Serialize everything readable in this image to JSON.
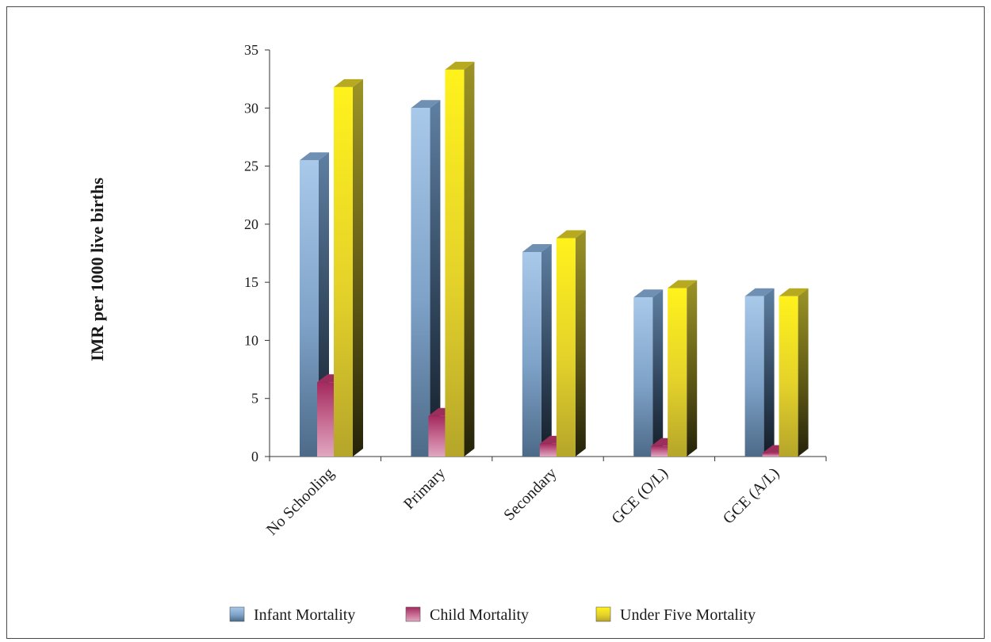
{
  "chart_data": {
    "type": "bar",
    "categories": [
      "No Schooling",
      "Primary",
      "Secondary",
      "GCE (O/L)",
      "GCE (A/L)"
    ],
    "series": [
      {
        "name": "Infant Mortality",
        "values": [
          25.5,
          30.0,
          17.6,
          13.7,
          13.8
        ]
      },
      {
        "name": "Child Mortality",
        "values": [
          6.4,
          3.5,
          1.1,
          0.9,
          0.3
        ]
      },
      {
        "name": "Under Five Mortality",
        "values": [
          31.8,
          33.3,
          18.8,
          14.5,
          13.8
        ]
      }
    ],
    "ylabel": "IMR per 1000 live births",
    "xlabel": "",
    "ylim": [
      0,
      35
    ],
    "yticks": [
      "0",
      "5",
      "10",
      "15",
      "20",
      "25",
      "30",
      "35"
    ],
    "grid": false,
    "legend_position": "bottom",
    "style": "3d-column",
    "colors": {
      "Infant Mortality": "#8fb4dc",
      "Child Mortality": "#b33a6e",
      "Under Five Mortality": "#f2e41a"
    }
  }
}
